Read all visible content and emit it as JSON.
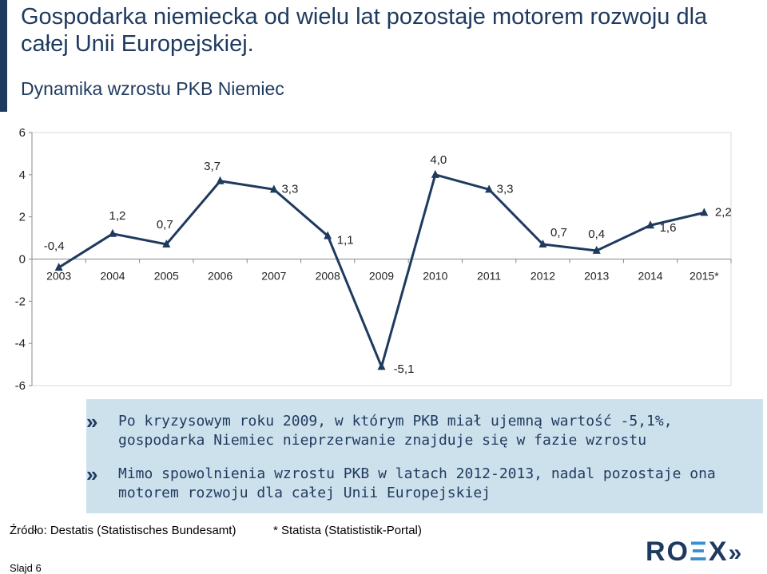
{
  "slide": {
    "title": "Gospodarka niemiecka od wielu lat pozostaje motorem rozwoju dla całej Unii Europejskiej.",
    "chart_title": "Dynamika wzrostu PKB Niemiec",
    "bullets": [
      "Po kryzysowym roku 2009, w którym PKB miał ujemną wartość -5,1%, gospodarka Niemiec nieprzerwanie znajduje się w fazie wzrostu",
      "Mimo spowolnienia wzrostu PKB w latach 2012-2013, nadal pozostaje ona motorem rozwoju dla całej Unii Europejskiej"
    ],
    "bullet_icon": "double-chevron-right-icon",
    "source_left": "Źródło: Destatis (Statistisches Bundesamt)",
    "source_right": "* Statista (Statististik-Portal)",
    "slide_number": "Slajd 6",
    "logo": "ROΞX"
  },
  "colors": {
    "line": "#1f3a5f",
    "callout_bg": "#cde1ec",
    "text": "#1f3a5f"
  },
  "chart_data": {
    "type": "line",
    "categories": [
      "2003",
      "2004",
      "2005",
      "2006",
      "2007",
      "2008",
      "2009",
      "2010",
      "2011",
      "2012",
      "2013",
      "2014",
      "2015*"
    ],
    "values": [
      -0.4,
      1.2,
      0.7,
      3.7,
      3.3,
      1.1,
      -5.1,
      4.0,
      3.3,
      0.7,
      0.4,
      1.6,
      2.2
    ],
    "data_labels": [
      "-0,4",
      "1,2",
      "0,7",
      "3,7",
      "3,3",
      "1,1",
      "-5,1",
      "4,0",
      "3,3",
      "0,7",
      "0,4",
      "1,6",
      "2,2"
    ],
    "y_ticks": [
      "6",
      "4",
      "2",
      "0",
      "-2",
      "-4",
      "-6"
    ],
    "ylim": [
      -6,
      6
    ],
    "grid": false,
    "marker": "triangle",
    "title": "Dynamika wzrostu PKB Niemiec"
  }
}
